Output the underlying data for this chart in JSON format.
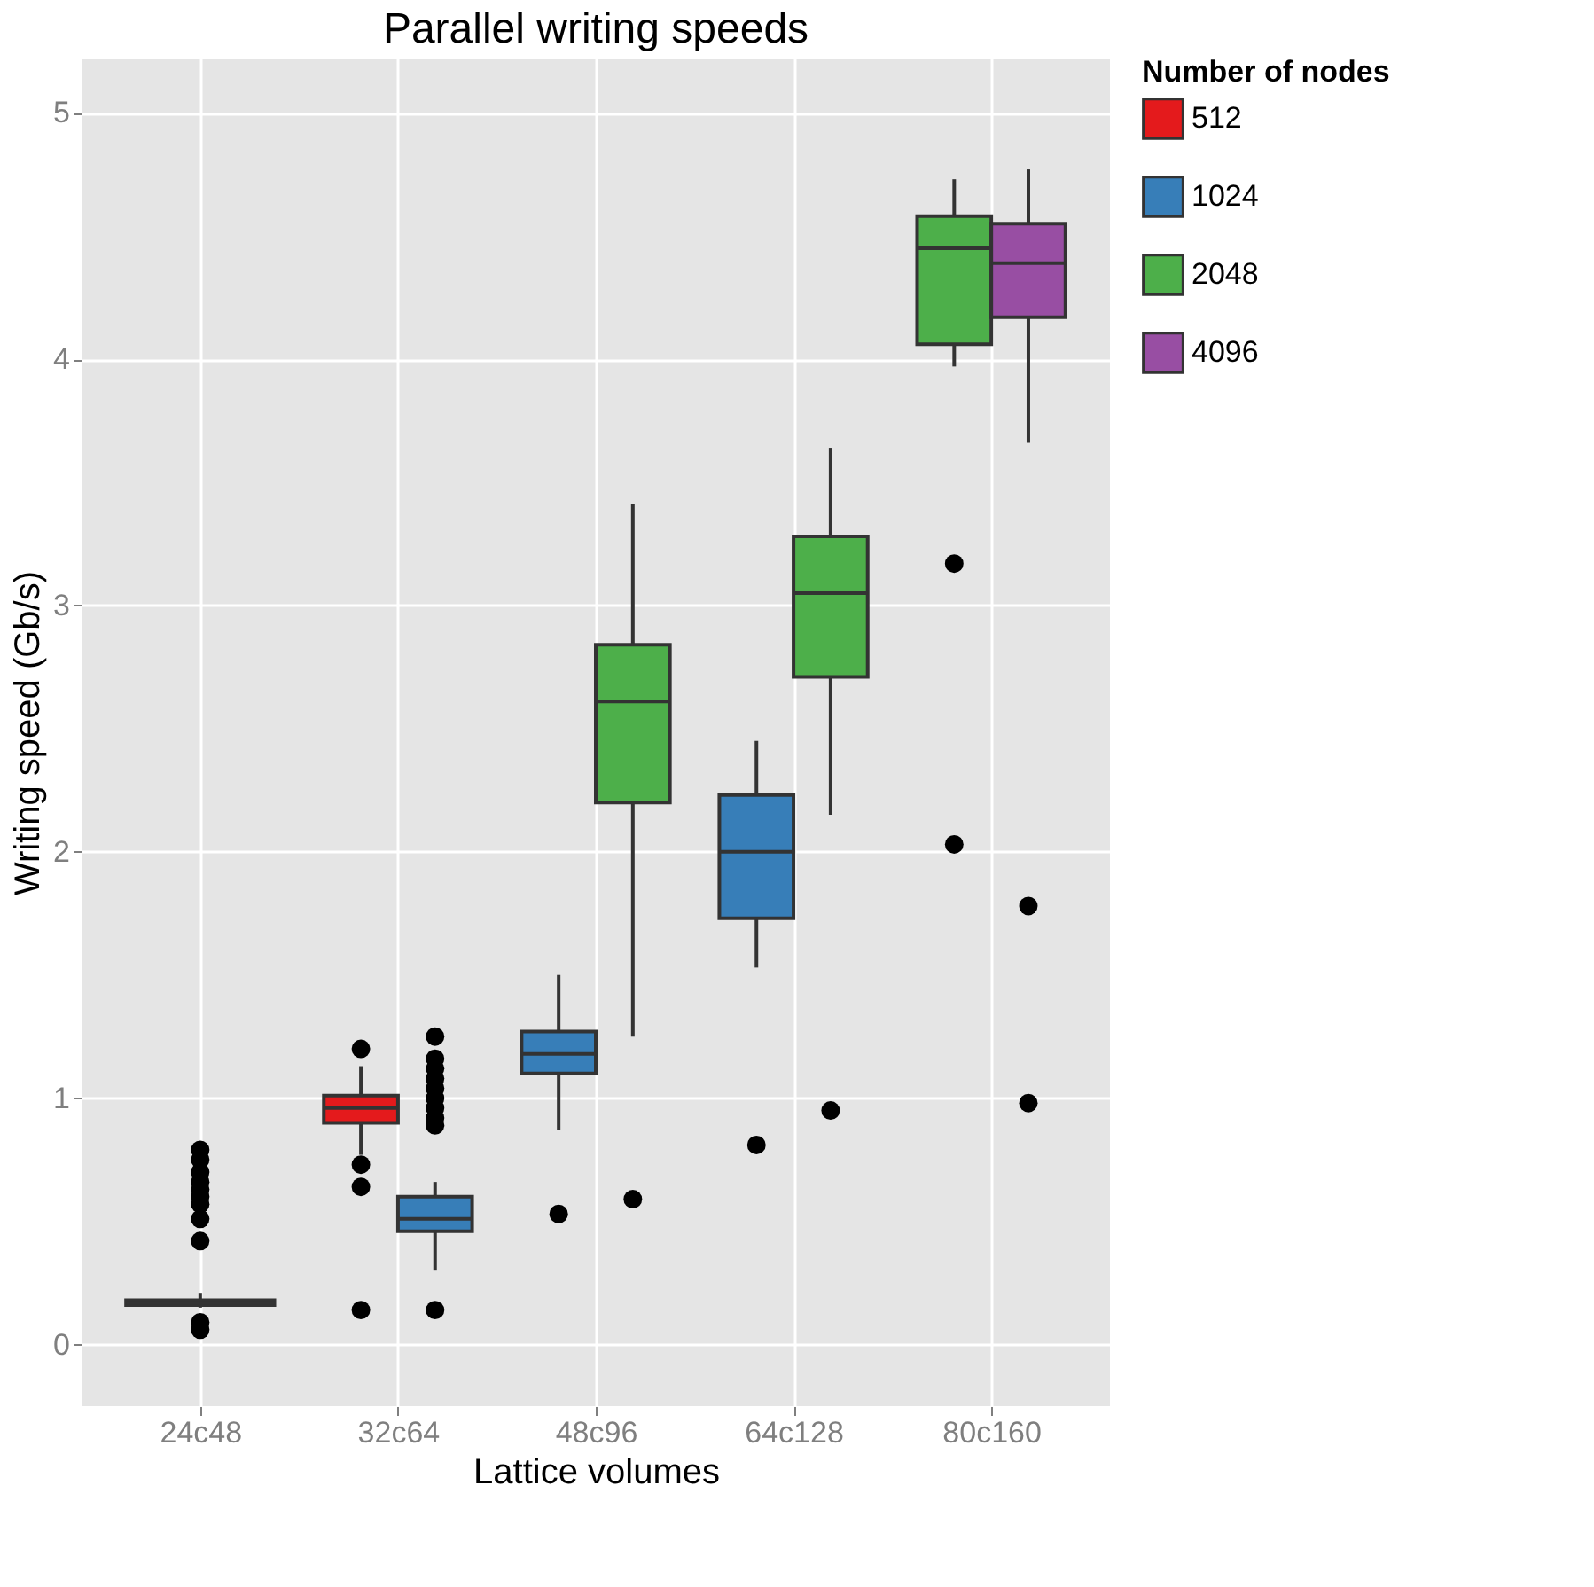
{
  "chart_data": {
    "type": "box",
    "title": "Parallel writing speeds",
    "xlabel": "Lattice volumes",
    "ylabel": "Writing speed (Gb/s)",
    "legend_title": "Number of nodes",
    "categories": [
      "24c48",
      "32c64",
      "48c96",
      "64c128",
      "80c160"
    ],
    "ylim": [
      -0.25,
      5.22
    ],
    "yticks": [
      0,
      1,
      2,
      3,
      4,
      5
    ],
    "grid": true,
    "legend": "right",
    "series": [
      {
        "name": "512",
        "color": "#e41a1c",
        "boxes": [
          {
            "low": 0.15,
            "q1": 0.16,
            "median": 0.17,
            "q3": 0.18,
            "high": 0.21,
            "outliers": [
              0.06,
              0.09,
              0.42,
              0.51,
              0.57,
              0.6,
              0.63,
              0.66,
              0.7,
              0.75,
              0.79
            ]
          },
          {
            "low": 0.77,
            "q1": 0.9,
            "median": 0.96,
            "q3": 1.01,
            "high": 1.13,
            "outliers": [
              0.14,
              0.64,
              0.73,
              1.2
            ]
          },
          null,
          null,
          null
        ]
      },
      {
        "name": "1024",
        "color": "#377eb8",
        "boxes": [
          null,
          {
            "low": 0.3,
            "q1": 0.46,
            "median": 0.51,
            "q3": 0.6,
            "high": 0.66,
            "outliers": [
              0.14,
              0.89,
              0.92,
              0.96,
              1.0,
              1.04,
              1.08,
              1.12,
              1.16,
              1.25
            ]
          },
          {
            "low": 0.87,
            "q1": 1.1,
            "median": 1.18,
            "q3": 1.27,
            "high": 1.5,
            "outliers": [
              0.53
            ]
          },
          {
            "low": 1.53,
            "q1": 1.73,
            "median": 2.0,
            "q3": 2.23,
            "high": 2.45,
            "outliers": [
              0.81
            ]
          },
          null
        ]
      },
      {
        "name": "2048",
        "color": "#4daf4a",
        "boxes": [
          null,
          null,
          {
            "low": 1.25,
            "q1": 2.2,
            "median": 2.61,
            "q3": 2.84,
            "high": 3.41,
            "outliers": [
              0.59
            ]
          },
          {
            "low": 2.15,
            "q1": 2.71,
            "median": 3.05,
            "q3": 3.28,
            "high": 3.64,
            "outliers": [
              0.95
            ]
          },
          {
            "low": 3.97,
            "q1": 4.06,
            "median": 4.45,
            "q3": 4.58,
            "high": 4.73,
            "outliers": [
              2.03,
              3.17
            ]
          }
        ]
      },
      {
        "name": "4096",
        "color": "#984ea3",
        "boxes": [
          null,
          null,
          null,
          null,
          {
            "low": 3.66,
            "q1": 4.17,
            "median": 4.39,
            "q3": 4.55,
            "high": 4.77,
            "outliers": [
              0.98,
              1.78
            ]
          }
        ]
      }
    ]
  }
}
